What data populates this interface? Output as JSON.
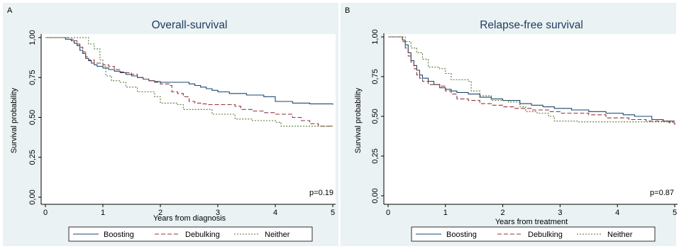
{
  "series_styles": [
    {
      "name": "Boosting",
      "color": "#1a476f",
      "dash": "none"
    },
    {
      "name": "Debulking",
      "color": "#90353b",
      "dash": "6,3"
    },
    {
      "name": "Neither",
      "color": "#55752f",
      "dash": "2,2"
    }
  ],
  "chart_data": [
    {
      "type": "line",
      "panel_label": "A",
      "title": "Overall-survival",
      "xlabel": "Years from diagnosis",
      "ylabel": "Survival probability",
      "xlim": [
        0,
        5
      ],
      "ylim": [
        0,
        1
      ],
      "xticks": [
        "0",
        "1",
        "2",
        "3",
        "4",
        "5"
      ],
      "yticks": [
        "0,00",
        "0,25",
        "0,50",
        "0,75",
        "1,00"
      ],
      "annotation": "p=0.19",
      "legend": [
        "Boosting",
        "Debulking",
        "Neither"
      ],
      "legend_position": "bottom",
      "series": [
        {
          "name": "Boosting",
          "points": [
            [
              0,
              1.0
            ],
            [
              0.35,
              0.99
            ],
            [
              0.45,
              0.98
            ],
            [
              0.5,
              0.965
            ],
            [
              0.55,
              0.95
            ],
            [
              0.6,
              0.92
            ],
            [
              0.65,
              0.9
            ],
            [
              0.7,
              0.87
            ],
            [
              0.75,
              0.855
            ],
            [
              0.8,
              0.84
            ],
            [
              0.85,
              0.83
            ],
            [
              0.9,
              0.82
            ],
            [
              1.0,
              0.81
            ],
            [
              1.1,
              0.8
            ],
            [
              1.2,
              0.79
            ],
            [
              1.3,
              0.78
            ],
            [
              1.4,
              0.77
            ],
            [
              1.5,
              0.76
            ],
            [
              1.6,
              0.75
            ],
            [
              1.7,
              0.74
            ],
            [
              1.8,
              0.73
            ],
            [
              1.9,
              0.725
            ],
            [
              2.0,
              0.72
            ],
            [
              2.5,
              0.71
            ],
            [
              2.6,
              0.7
            ],
            [
              2.7,
              0.69
            ],
            [
              2.8,
              0.68
            ],
            [
              2.9,
              0.67
            ],
            [
              3.0,
              0.66
            ],
            [
              3.2,
              0.65
            ],
            [
              3.5,
              0.64
            ],
            [
              3.8,
              0.63
            ],
            [
              4.0,
              0.6
            ],
            [
              4.3,
              0.59
            ],
            [
              4.6,
              0.585
            ],
            [
              5.0,
              0.58
            ]
          ]
        },
        {
          "name": "Debulking",
          "points": [
            [
              0,
              1.0
            ],
            [
              0.4,
              0.99
            ],
            [
              0.5,
              0.98
            ],
            [
              0.55,
              0.96
            ],
            [
              0.6,
              0.94
            ],
            [
              0.65,
              0.91
            ],
            [
              0.7,
              0.88
            ],
            [
              0.75,
              0.86
            ],
            [
              0.85,
              0.84
            ],
            [
              1.0,
              0.83
            ],
            [
              1.1,
              0.82
            ],
            [
              1.2,
              0.8
            ],
            [
              1.3,
              0.785
            ],
            [
              1.4,
              0.78
            ],
            [
              1.5,
              0.77
            ],
            [
              1.6,
              0.75
            ],
            [
              1.7,
              0.74
            ],
            [
              1.8,
              0.73
            ],
            [
              1.9,
              0.72
            ],
            [
              2.0,
              0.71
            ],
            [
              2.15,
              0.7
            ],
            [
              2.2,
              0.66
            ],
            [
              2.3,
              0.65
            ],
            [
              2.4,
              0.63
            ],
            [
              2.5,
              0.6
            ],
            [
              2.6,
              0.59
            ],
            [
              2.7,
              0.585
            ],
            [
              2.8,
              0.58
            ],
            [
              3.3,
              0.57
            ],
            [
              3.4,
              0.55
            ],
            [
              3.6,
              0.54
            ],
            [
              3.8,
              0.53
            ],
            [
              4.0,
              0.52
            ],
            [
              4.3,
              0.5
            ],
            [
              4.45,
              0.48
            ],
            [
              4.6,
              0.46
            ],
            [
              4.75,
              0.445
            ],
            [
              5.0,
              0.445
            ]
          ]
        },
        {
          "name": "Neither",
          "points": [
            [
              0,
              1.0
            ],
            [
              0.7,
              1.0
            ],
            [
              0.75,
              0.96
            ],
            [
              0.85,
              0.93
            ],
            [
              0.95,
              0.86
            ],
            [
              1.0,
              0.82
            ],
            [
              1.05,
              0.76
            ],
            [
              1.15,
              0.73
            ],
            [
              1.3,
              0.72
            ],
            [
              1.4,
              0.69
            ],
            [
              1.6,
              0.66
            ],
            [
              1.9,
              0.63
            ],
            [
              2.0,
              0.59
            ],
            [
              2.3,
              0.58
            ],
            [
              2.4,
              0.55
            ],
            [
              2.9,
              0.52
            ],
            [
              3.3,
              0.49
            ],
            [
              3.6,
              0.48
            ],
            [
              4.0,
              0.47
            ],
            [
              4.1,
              0.445
            ],
            [
              5.0,
              0.445
            ]
          ]
        }
      ]
    },
    {
      "type": "line",
      "panel_label": "B",
      "title": "Relapse-free survival",
      "xlabel": "Years from treatment",
      "ylabel": "Survival probability",
      "xlim": [
        0,
        5
      ],
      "ylim": [
        0,
        1
      ],
      "xticks": [
        "0",
        "1",
        "2",
        "3",
        "4",
        "5"
      ],
      "yticks": [
        "0,00",
        "0,25",
        "0,50",
        "0,75",
        "1,00"
      ],
      "annotation": "p=0.87",
      "legend": [
        "Boosting",
        "Debulking",
        "Neither"
      ],
      "legend_position": "bottom",
      "series": [
        {
          "name": "Boosting",
          "points": [
            [
              0,
              1.0
            ],
            [
              0.2,
              1.0
            ],
            [
              0.25,
              0.98
            ],
            [
              0.3,
              0.95
            ],
            [
              0.35,
              0.9
            ],
            [
              0.4,
              0.85
            ],
            [
              0.45,
              0.82
            ],
            [
              0.5,
              0.79
            ],
            [
              0.55,
              0.76
            ],
            [
              0.6,
              0.74
            ],
            [
              0.7,
              0.72
            ],
            [
              0.8,
              0.7
            ],
            [
              0.9,
              0.68
            ],
            [
              1.0,
              0.67
            ],
            [
              1.1,
              0.66
            ],
            [
              1.2,
              0.65
            ],
            [
              1.4,
              0.64
            ],
            [
              1.6,
              0.62
            ],
            [
              1.8,
              0.61
            ],
            [
              2.0,
              0.6
            ],
            [
              2.3,
              0.58
            ],
            [
              2.5,
              0.57
            ],
            [
              2.7,
              0.56
            ],
            [
              2.9,
              0.55
            ],
            [
              3.2,
              0.54
            ],
            [
              3.5,
              0.53
            ],
            [
              3.8,
              0.52
            ],
            [
              4.1,
              0.51
            ],
            [
              4.3,
              0.5
            ],
            [
              4.6,
              0.48
            ],
            [
              4.8,
              0.47
            ],
            [
              5.0,
              0.47
            ]
          ]
        },
        {
          "name": "Debulking",
          "points": [
            [
              0,
              1.0
            ],
            [
              0.2,
              1.0
            ],
            [
              0.25,
              0.97
            ],
            [
              0.3,
              0.93
            ],
            [
              0.35,
              0.88
            ],
            [
              0.4,
              0.84
            ],
            [
              0.45,
              0.8
            ],
            [
              0.5,
              0.76
            ],
            [
              0.55,
              0.74
            ],
            [
              0.6,
              0.72
            ],
            [
              0.7,
              0.7
            ],
            [
              0.9,
              0.69
            ],
            [
              1.0,
              0.66
            ],
            [
              1.1,
              0.64
            ],
            [
              1.2,
              0.61
            ],
            [
              1.4,
              0.6
            ],
            [
              1.6,
              0.58
            ],
            [
              1.8,
              0.57
            ],
            [
              2.0,
              0.56
            ],
            [
              2.2,
              0.55
            ],
            [
              2.5,
              0.54
            ],
            [
              2.8,
              0.53
            ],
            [
              3.0,
              0.52
            ],
            [
              3.5,
              0.51
            ],
            [
              3.8,
              0.49
            ],
            [
              4.2,
              0.48
            ],
            [
              4.5,
              0.47
            ],
            [
              4.9,
              0.46
            ],
            [
              5.0,
              0.44
            ]
          ]
        },
        {
          "name": "Neither",
          "points": [
            [
              0,
              1.0
            ],
            [
              0.25,
              1.0
            ],
            [
              0.3,
              0.97
            ],
            [
              0.4,
              0.93
            ],
            [
              0.5,
              0.9
            ],
            [
              0.6,
              0.86
            ],
            [
              0.7,
              0.81
            ],
            [
              0.9,
              0.8
            ],
            [
              1.0,
              0.77
            ],
            [
              1.1,
              0.73
            ],
            [
              1.4,
              0.72
            ],
            [
              1.45,
              0.66
            ],
            [
              1.6,
              0.63
            ],
            [
              1.8,
              0.6
            ],
            [
              2.0,
              0.6
            ],
            [
              2.1,
              0.59
            ],
            [
              2.3,
              0.56
            ],
            [
              2.4,
              0.53
            ],
            [
              2.6,
              0.52
            ],
            [
              2.8,
              0.5
            ],
            [
              2.9,
              0.47
            ],
            [
              3.3,
              0.465
            ],
            [
              5.0,
              0.465
            ]
          ]
        }
      ]
    }
  ]
}
